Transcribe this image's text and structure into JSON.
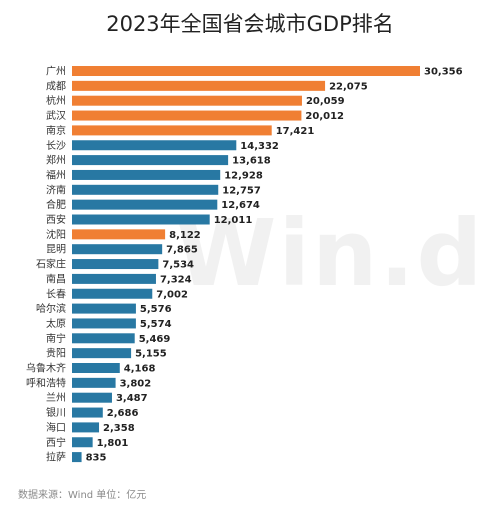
{
  "chart_data": {
    "type": "bar",
    "orientation": "horizontal",
    "title": "2023年全国省会城市GDP排名",
    "categories": [
      "广州",
      "成都",
      "杭州",
      "武汉",
      "南京",
      "长沙",
      "郑州",
      "福州",
      "济南",
      "合肥",
      "西安",
      "沈阳",
      "昆明",
      "石家庄",
      "南昌",
      "长春",
      "哈尔滨",
      "太原",
      "南宁",
      "贵阳",
      "乌鲁木齐",
      "呼和浩特",
      "兰州",
      "银川",
      "海口",
      "西宁",
      "拉萨"
    ],
    "values": [
      30356,
      22075,
      20059,
      20012,
      17421,
      14332,
      13618,
      12928,
      12757,
      12674,
      12011,
      8122,
      7865,
      7534,
      7324,
      7002,
      5576,
      5574,
      5469,
      5155,
      4168,
      3802,
      3487,
      2686,
      2358,
      1801,
      835
    ],
    "value_labels": [
      "30,356",
      "22,075",
      "20,059",
      "20,012",
      "17,421",
      "14,332",
      "13,618",
      "12,928",
      "12,757",
      "12,674",
      "12,011",
      "8,122",
      "7,865",
      "7,534",
      "7,324",
      "7,002",
      "5,576",
      "5,574",
      "5,469",
      "5,155",
      "4,168",
      "3,802",
      "3,487",
      "2,686",
      "2,358",
      "1,801",
      "835"
    ],
    "highlighted": [
      "广州",
      "成都",
      "杭州",
      "武汉",
      "南京",
      "沈阳"
    ],
    "colors": {
      "highlight": "#F07F33",
      "default": "#2878A3"
    },
    "xlim": [
      0,
      30356
    ],
    "grid": false,
    "legend": "none"
  },
  "watermark": "Win.d",
  "source_note": "数据来源：Wind  单位：亿元"
}
